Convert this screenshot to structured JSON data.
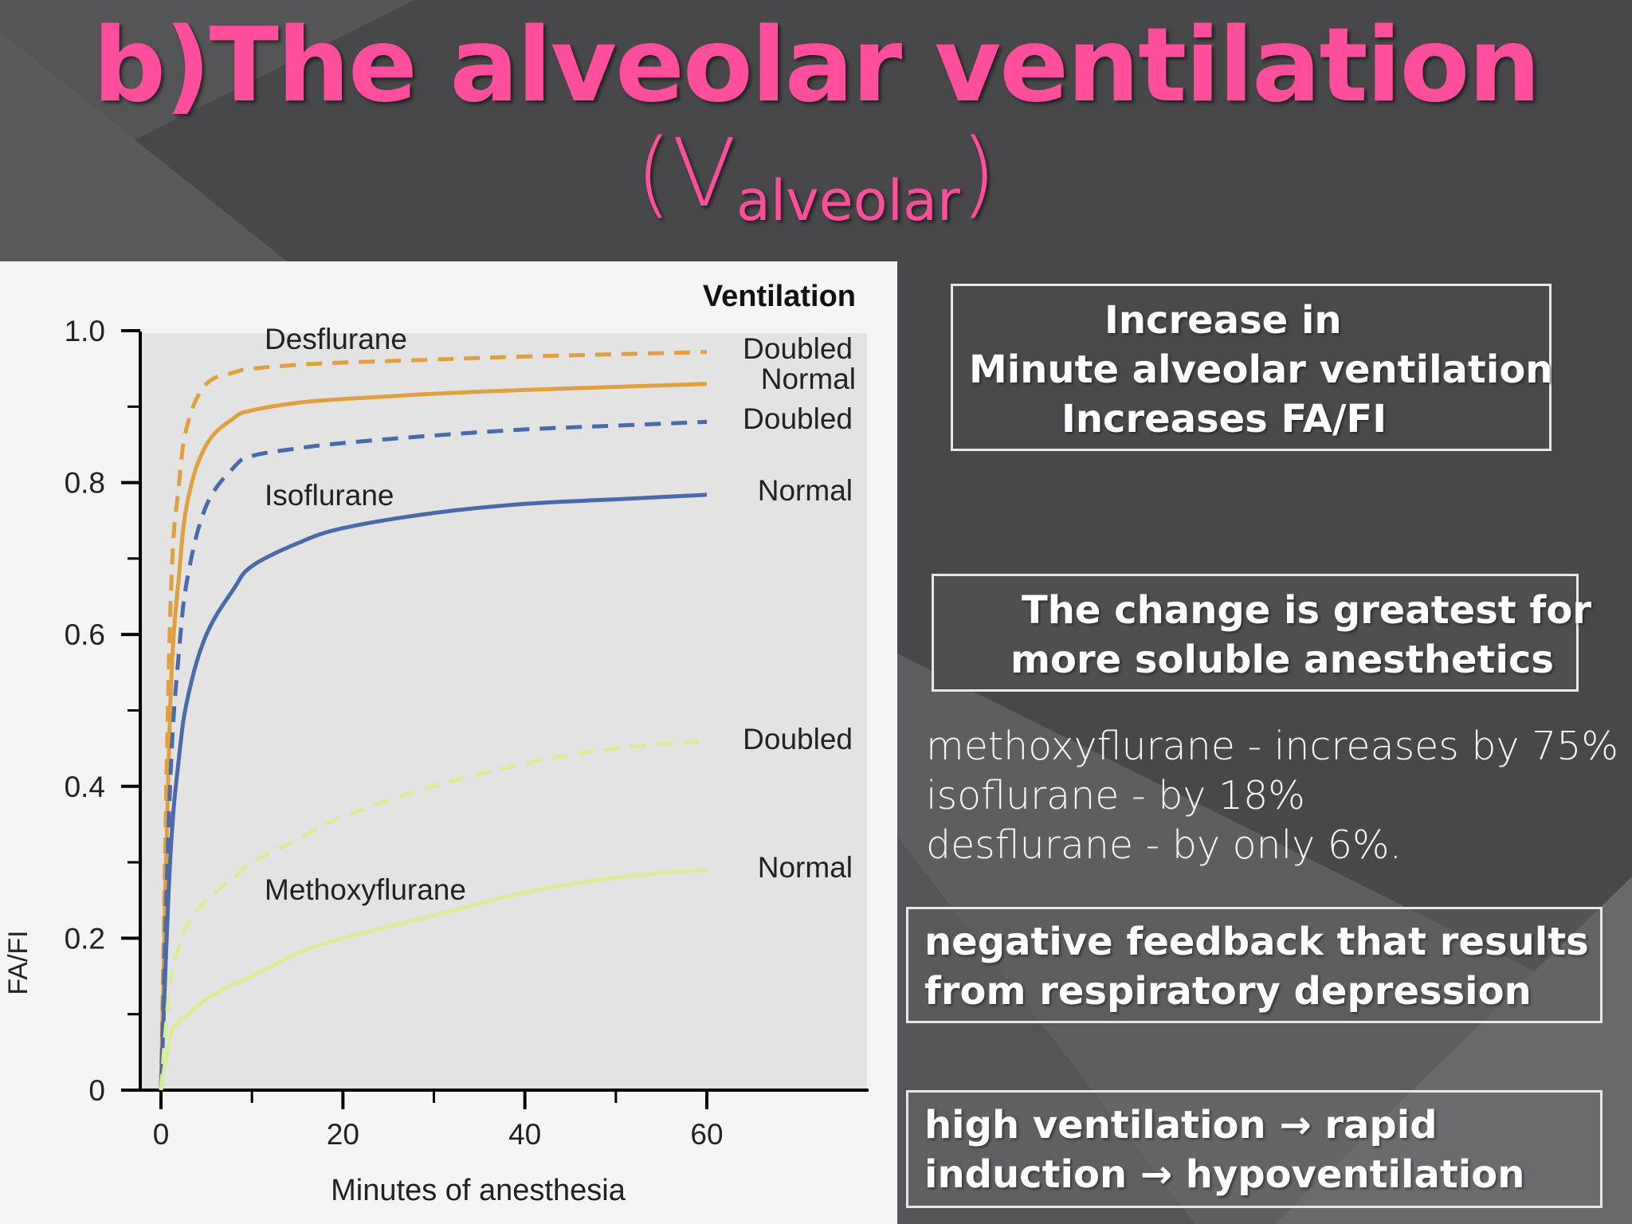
{
  "slide": {
    "title_line1": "b)The alveolar ventilation",
    "title_paren_open": "(V",
    "title_sub": "alveolar",
    "title_paren_close": ")",
    "accent_color": "#ff4f9c"
  },
  "boxes": {
    "box1": [
      "Increase in",
      "Minute alveolar ventilation",
      "Increases FA/FI"
    ],
    "box2": [
      "The change is greatest   for",
      "more soluble anesthetics"
    ],
    "stats": [
      "methoxyflurane  -  increases by 75%",
      "isoflurane  - by 18%",
      "desflurane - by only 6%."
    ],
    "box3": [
      "negative feedback that results",
      "from respiratory depression"
    ],
    "box4": [
      "high ventilation → rapid",
      "induction → hypoventilation"
    ]
  },
  "chart_data": {
    "type": "line",
    "xlabel": "Minutes of anesthesia",
    "ylabel": "FA/FI",
    "legend_title": "Ventilation",
    "xlim": [
      0,
      60
    ],
    "ylim": [
      0,
      1.0
    ],
    "x_ticks": [
      0,
      20,
      40,
      60
    ],
    "y_ticks": [
      0,
      0.2,
      0.4,
      0.6,
      0.8,
      1.0
    ],
    "y_tick_labels": [
      "0",
      "0.2",
      "0.4",
      "0.6",
      "0.8",
      "1.0"
    ],
    "grid": false,
    "x": [
      0,
      1,
      2,
      3,
      5,
      8,
      10,
      15,
      20,
      30,
      40,
      50,
      60
    ],
    "series": [
      {
        "drug": "Desflurane",
        "ventilation": "Doubled",
        "style": "dashed",
        "color": "#e0a040",
        "values": [
          0,
          0.62,
          0.8,
          0.88,
          0.93,
          0.945,
          0.95,
          0.955,
          0.958,
          0.962,
          0.966,
          0.969,
          0.972
        ]
      },
      {
        "drug": "Desflurane",
        "ventilation": "Normal",
        "style": "solid",
        "color": "#e0a040",
        "values": [
          0,
          0.5,
          0.68,
          0.78,
          0.85,
          0.885,
          0.895,
          0.905,
          0.91,
          0.917,
          0.922,
          0.926,
          0.93
        ]
      },
      {
        "drug": "Isoflurane",
        "ventilation": "Doubled",
        "style": "dashed",
        "color": "#4a6aaa",
        "values": [
          0,
          0.4,
          0.58,
          0.68,
          0.77,
          0.82,
          0.835,
          0.845,
          0.852,
          0.862,
          0.87,
          0.875,
          0.88
        ]
      },
      {
        "drug": "Isoflurane",
        "ventilation": "Normal",
        "style": "solid",
        "color": "#4a6aaa",
        "values": [
          0,
          0.3,
          0.44,
          0.52,
          0.6,
          0.66,
          0.69,
          0.72,
          0.74,
          0.76,
          0.772,
          0.778,
          0.784
        ]
      },
      {
        "drug": "Methoxyflurane",
        "ventilation": "Doubled",
        "style": "dashed",
        "color": "#d8ec9a",
        "values": [
          0,
          0.14,
          0.19,
          0.22,
          0.25,
          0.28,
          0.3,
          0.33,
          0.36,
          0.4,
          0.43,
          0.45,
          0.46
        ]
      },
      {
        "drug": "Methoxyflurane",
        "ventilation": "Normal",
        "style": "solid",
        "color": "#d8ec9a",
        "values": [
          0,
          0.07,
          0.09,
          0.1,
          0.12,
          0.14,
          0.15,
          0.18,
          0.2,
          0.23,
          0.26,
          0.28,
          0.29
        ]
      }
    ],
    "drug_labels": [
      "Desflurane",
      "Isoflurane",
      "Methoxyflurane"
    ],
    "right_labels": [
      "Doubled",
      "Normal",
      "Doubled",
      "Normal",
      "Doubled",
      "Normal"
    ]
  }
}
